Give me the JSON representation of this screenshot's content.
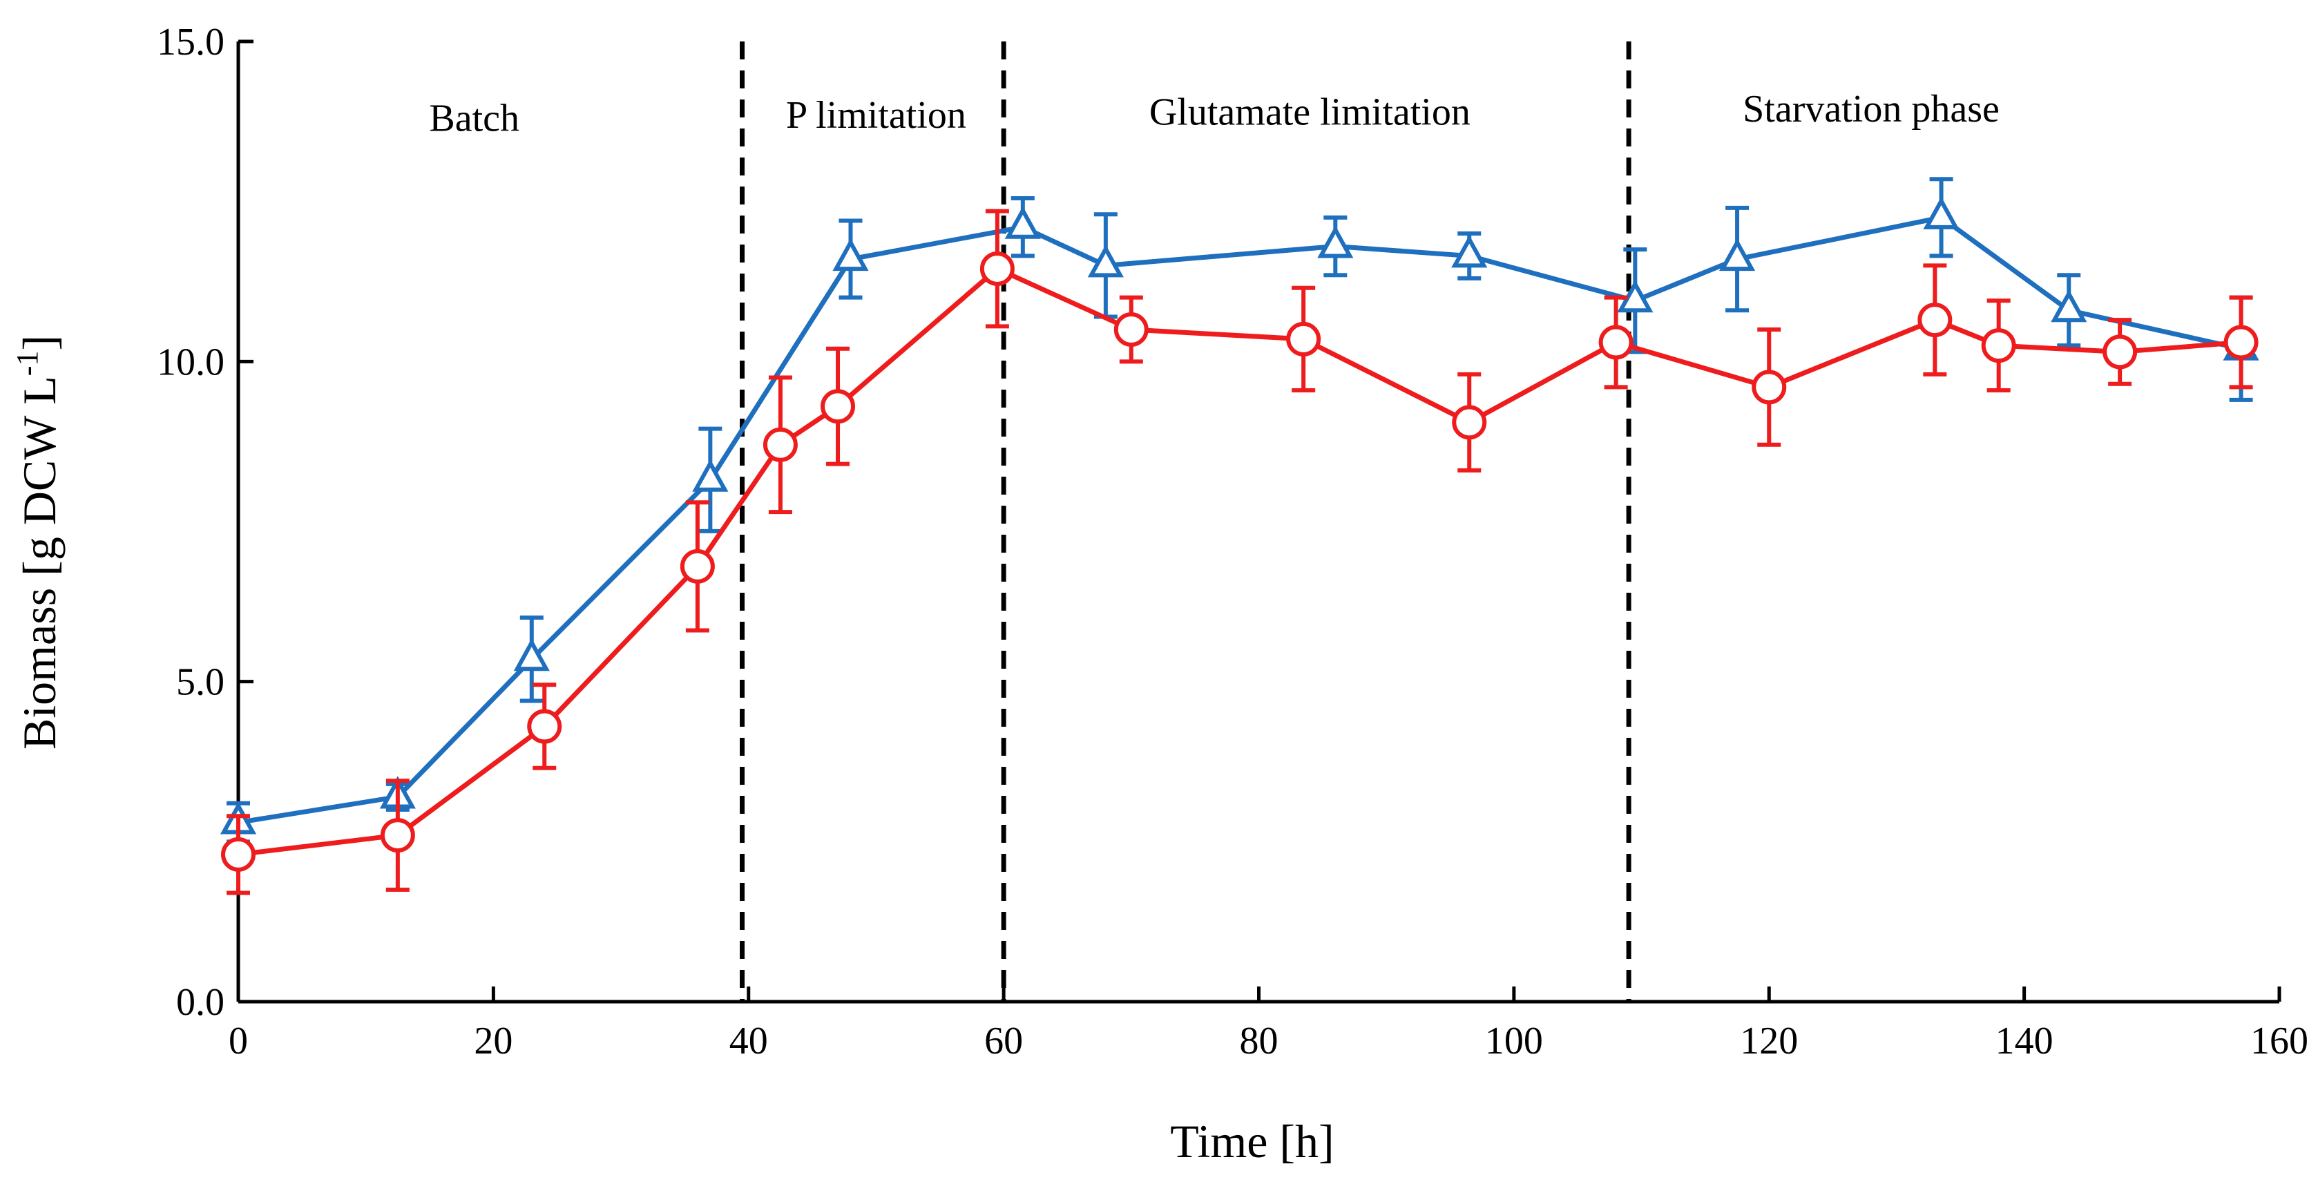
{
  "chart_data": {
    "type": "line",
    "title": "",
    "xlabel": "Time [h]",
    "ylabel": "Biomass [g DCW L",
    "ylabel_sup": "-1",
    "ylabel_end": "]",
    "xlim": [
      0,
      160
    ],
    "ylim": [
      0,
      15
    ],
    "x_ticks": [
      0,
      20,
      40,
      60,
      80,
      100,
      120,
      140,
      160
    ],
    "x_tick_labels": [
      "0",
      "20",
      "40",
      "60",
      "80",
      "100",
      "120",
      "140",
      "160"
    ],
    "y_ticks": [
      0,
      5,
      10,
      15
    ],
    "y_tick_labels": [
      "0.0",
      "5.0",
      "10.0",
      "15.0"
    ],
    "grid": false,
    "phase_boundaries": [
      39.5,
      60,
      109
    ],
    "phases": [
      {
        "label": "Batch",
        "x_center": 18.5,
        "y": 13.6
      },
      {
        "label": "P limitation",
        "x_center": 50,
        "y": 13.65
      },
      {
        "label": "Glutamate limitation",
        "x_center": 84,
        "y": 13.7
      },
      {
        "label": "Starvation phase",
        "x_center": 128,
        "y": 13.75
      }
    ],
    "series": [
      {
        "name": "triangle series",
        "marker": "triangle",
        "color": "#1f6fbf",
        "points": [
          {
            "x": 0,
            "y": 2.8,
            "err": 0.3
          },
          {
            "x": 12.5,
            "y": 3.2,
            "err": 0.2
          },
          {
            "x": 23,
            "y": 5.35,
            "err": 0.65
          },
          {
            "x": 37,
            "y": 8.15,
            "err": 0.8
          },
          {
            "x": 48,
            "y": 11.6,
            "err": 0.6
          },
          {
            "x": 61.5,
            "y": 12.1,
            "err": 0.45
          },
          {
            "x": 68,
            "y": 11.5,
            "err": 0.8
          },
          {
            "x": 86,
            "y": 11.8,
            "err": 0.45
          },
          {
            "x": 96.5,
            "y": 11.65,
            "err": 0.35
          },
          {
            "x": 109.5,
            "y": 10.95,
            "err": 0.8
          },
          {
            "x": 117.5,
            "y": 11.6,
            "err": 0.8
          },
          {
            "x": 133.5,
            "y": 12.25,
            "err": 0.6
          },
          {
            "x": 143.5,
            "y": 10.8,
            "err": 0.55
          },
          {
            "x": 157,
            "y": 10.2,
            "err": 0.8
          }
        ]
      },
      {
        "name": "circle series",
        "marker": "circle",
        "color": "#ee1c1c",
        "points": [
          {
            "x": 0,
            "y": 2.3,
            "err": 0.6
          },
          {
            "x": 12.5,
            "y": 2.6,
            "err": 0.85
          },
          {
            "x": 24,
            "y": 4.3,
            "err": 0.65
          },
          {
            "x": 36,
            "y": 6.8,
            "err": 1.0
          },
          {
            "x": 42.5,
            "y": 8.7,
            "err": 1.05
          },
          {
            "x": 47,
            "y": 9.3,
            "err": 0.9
          },
          {
            "x": 59.5,
            "y": 11.45,
            "err": 0.9
          },
          {
            "x": 70,
            "y": 10.5,
            "err": 0.5
          },
          {
            "x": 83.5,
            "y": 10.35,
            "err": 0.8
          },
          {
            "x": 96.5,
            "y": 9.05,
            "err": 0.75
          },
          {
            "x": 108,
            "y": 10.3,
            "err": 0.7
          },
          {
            "x": 120,
            "y": 9.6,
            "err": 0.9
          },
          {
            "x": 133,
            "y": 10.65,
            "err": 0.85
          },
          {
            "x": 138,
            "y": 10.25,
            "err": 0.7
          },
          {
            "x": 147.5,
            "y": 10.15,
            "err": 0.5
          },
          {
            "x": 157,
            "y": 10.3,
            "err": 0.7
          }
        ]
      }
    ]
  }
}
